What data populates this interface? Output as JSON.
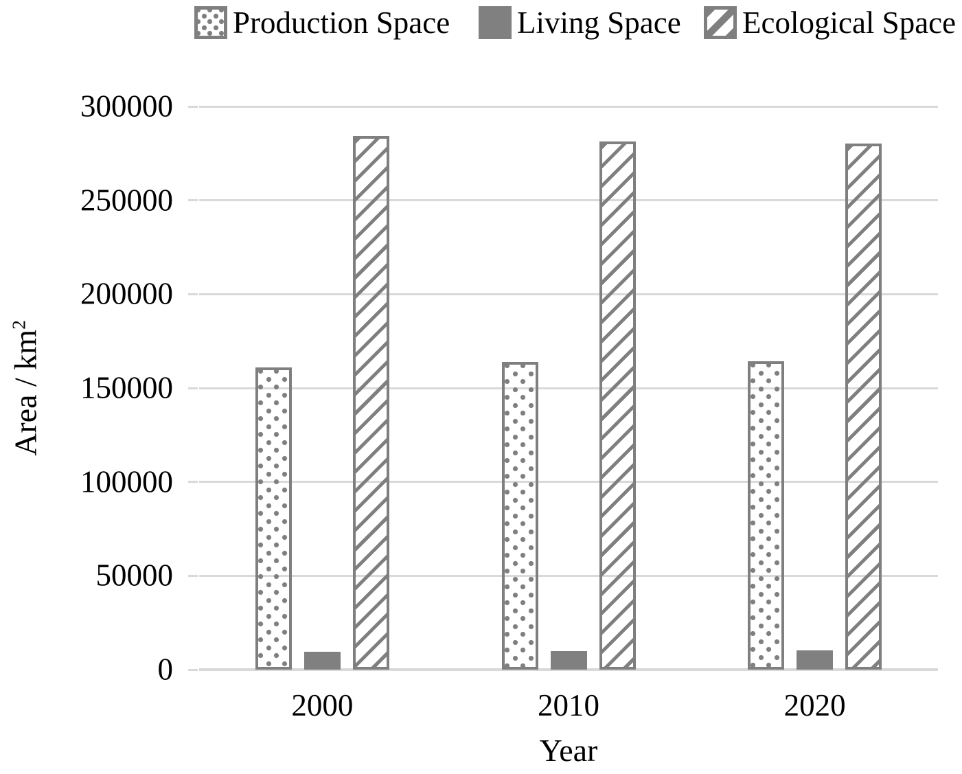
{
  "figure": {
    "xlabel": "Year",
    "ylabel_base": "Area / km",
    "ylabel_exponent": "2"
  },
  "legend": {
    "items": [
      {
        "label": "Production Space",
        "pattern": "dots"
      },
      {
        "label": "Living Space",
        "pattern": "solid"
      },
      {
        "label": "Ecological Space",
        "pattern": "diagonal"
      }
    ]
  },
  "chart_data": {
    "type": "bar",
    "title": "",
    "xlabel": "Year",
    "ylabel": "Area / km²",
    "categories": [
      "2000",
      "2010",
      "2020"
    ],
    "series": [
      {
        "name": "Production Space",
        "pattern": "dots",
        "values": [
          161000,
          164000,
          164200
        ]
      },
      {
        "name": "Living Space",
        "pattern": "solid",
        "values": [
          9400,
          10000,
          10100
        ]
      },
      {
        "name": "Ecological Space",
        "pattern": "diagonal",
        "values": [
          284400,
          281200,
          280100
        ]
      }
    ],
    "ylim": [
      0,
      300000
    ],
    "yticks": [
      0,
      50000,
      100000,
      150000,
      200000,
      250000,
      300000
    ],
    "grid": true,
    "legend_position": "top"
  },
  "colors": {
    "pattern_gray": "#7f7f7f",
    "solid_gray": "#808080",
    "gridline": "#d9d9d9",
    "text": "#000000",
    "background": "#ffffff"
  }
}
